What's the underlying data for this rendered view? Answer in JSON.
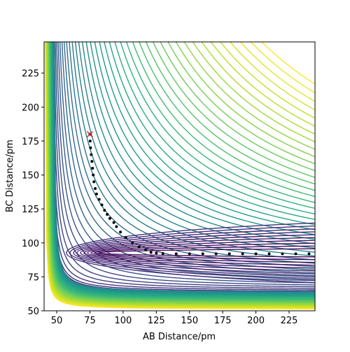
{
  "chart_data": {
    "type": "scatter",
    "x_label": "AB Distance/pm",
    "y_label": "BC Distance/pm",
    "xlim": [
      40.5,
      244.5
    ],
    "ylim": [
      50,
      248
    ],
    "xticks": [
      50,
      75,
      100,
      125,
      150,
      175,
      200,
      225
    ],
    "yticks": [
      50,
      75,
      100,
      125,
      150,
      175,
      200,
      225
    ],
    "series": [
      {
        "color": "#000000",
        "x": [
          75,
          75.2,
          75.5,
          76,
          76.5,
          77,
          77.5,
          78,
          79,
          80,
          82,
          84,
          86,
          88,
          90,
          93,
          95,
          98,
          102,
          107,
          112,
          117,
          121,
          125,
          130,
          140,
          150,
          160,
          170,
          180,
          190,
          200,
          210,
          220,
          230,
          240
        ],
        "values": [
          180,
          175,
          170,
          165,
          160,
          155,
          150,
          145,
          140,
          136,
          132,
          128,
          124,
          121,
          118,
          115,
          112,
          108,
          104,
          100,
          97,
          95,
          93,
          92.5,
          92.2,
          92,
          92,
          92,
          92,
          92,
          92,
          92,
          92,
          92,
          92,
          92
        ]
      },
      {
        "color": "#d62728",
        "marker": "x",
        "x": [
          75
        ],
        "values": [
          180
        ]
      }
    ]
  }
}
